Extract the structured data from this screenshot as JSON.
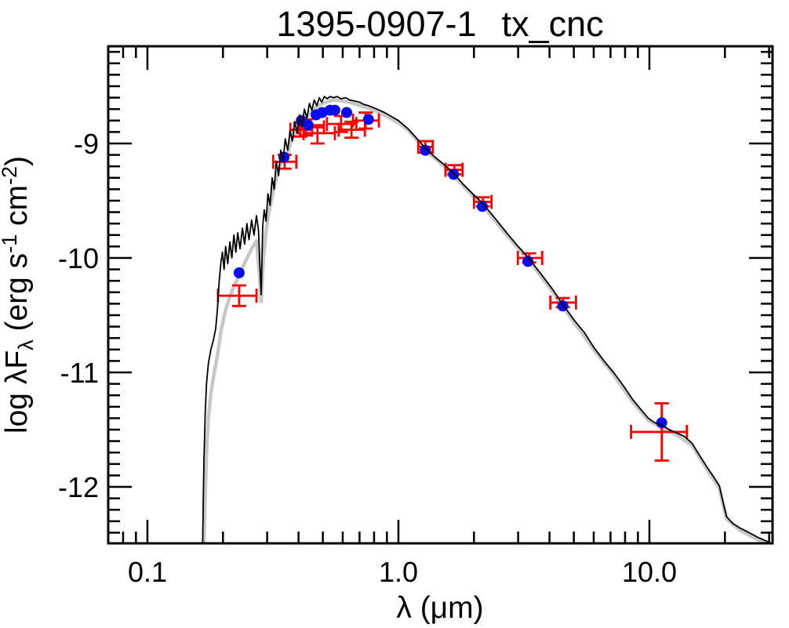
{
  "title": {
    "id": "1395-0907-1",
    "name": "tx_cnc"
  },
  "axes": {
    "xlabel": "λ (μm)",
    "ylabel_parts": [
      {
        "t": "log λF"
      },
      {
        "t": "λ",
        "s": "sub"
      },
      {
        "t": " (erg s"
      },
      {
        "t": "-1",
        "s": "sup"
      },
      {
        "t": " cm"
      },
      {
        "t": "-2",
        "s": "sup"
      },
      {
        "t": ")"
      }
    ],
    "x_scale": "log",
    "y_scale": "linear",
    "xlim": [
      0.0698,
      30.95
    ],
    "ylim": [
      -12.493,
      -8.151
    ],
    "x_major": [
      {
        "value": 0.1,
        "label": "0.1"
      },
      {
        "value": 1.0,
        "label": "1.0"
      },
      {
        "value": 10.0,
        "label": "10.0"
      }
    ],
    "x_minor": [
      0.08,
      0.09,
      0.2,
      0.3,
      0.4,
      0.5,
      0.6,
      0.7,
      0.8,
      0.9,
      2,
      3,
      4,
      5,
      6,
      7,
      8,
      9,
      20,
      30
    ],
    "y_major": [
      {
        "value": -9,
        "label": "-9"
      },
      {
        "value": -10,
        "label": "-10"
      },
      {
        "value": -11,
        "label": "-11"
      },
      {
        "value": -12,
        "label": "-12"
      }
    ],
    "y_minor_step": 0.1
  },
  "colors": {
    "background": "#ffffff",
    "axis": "#000000",
    "model_black": "#000000",
    "model_gray": "#c7c7c7",
    "point_blue": "#0b0bee",
    "error_red": "#ff0000"
  },
  "chart_data": {
    "type": "line+scatter",
    "x_unit": "micron",
    "y_unit": "log(lambda*F_lambda) [erg s^-1 cm^-2]",
    "series": [
      {
        "name": "model-spectrum-smoothed",
        "color": "#c7c7c7",
        "width": 4.5,
        "points": [
          [
            0.168,
            -12.49
          ],
          [
            0.17,
            -12.05
          ],
          [
            0.172,
            -11.7
          ],
          [
            0.175,
            -11.4
          ],
          [
            0.179,
            -11.18
          ],
          [
            0.184,
            -11.02
          ],
          [
            0.19,
            -10.85
          ],
          [
            0.197,
            -10.62
          ],
          [
            0.205,
            -10.45
          ],
          [
            0.213,
            -10.34
          ],
          [
            0.222,
            -10.24
          ],
          [
            0.232,
            -10.16
          ],
          [
            0.242,
            -10.06
          ],
          [
            0.252,
            -9.98
          ],
          [
            0.263,
            -9.9
          ],
          [
            0.272,
            -9.85
          ],
          [
            0.279,
            -10.12
          ],
          [
            0.284,
            -10.38
          ],
          [
            0.29,
            -10.0
          ],
          [
            0.297,
            -9.76
          ],
          [
            0.305,
            -9.6
          ],
          [
            0.314,
            -9.46
          ],
          [
            0.324,
            -9.33
          ],
          [
            0.335,
            -9.22
          ],
          [
            0.347,
            -9.12
          ],
          [
            0.36,
            -9.12
          ],
          [
            0.373,
            -8.98
          ],
          [
            0.386,
            -8.92
          ],
          [
            0.4,
            -8.86
          ],
          [
            0.42,
            -8.8
          ],
          [
            0.44,
            -8.74
          ],
          [
            0.46,
            -8.7
          ],
          [
            0.48,
            -8.67
          ],
          [
            0.5,
            -8.65
          ],
          [
            0.53,
            -8.63
          ],
          [
            0.56,
            -8.62
          ],
          [
            0.6,
            -8.63
          ],
          [
            0.64,
            -8.64
          ],
          [
            0.68,
            -8.66
          ],
          [
            0.73,
            -8.68
          ],
          [
            0.78,
            -8.7
          ],
          [
            0.84,
            -8.73
          ],
          [
            0.91,
            -8.77
          ],
          [
            1.0,
            -8.82
          ],
          [
            1.1,
            -8.89
          ],
          [
            1.28,
            -9.06
          ],
          [
            1.45,
            -9.16
          ],
          [
            1.66,
            -9.28
          ],
          [
            2.0,
            -9.47
          ],
          [
            2.16,
            -9.54
          ],
          [
            2.7,
            -9.8
          ],
          [
            3.3,
            -10.02
          ],
          [
            4.1,
            -10.29
          ],
          [
            5.0,
            -10.56
          ],
          [
            6.0,
            -10.8
          ],
          [
            7.2,
            -11.02
          ],
          [
            8.6,
            -11.26
          ],
          [
            9.9,
            -11.42
          ],
          [
            11.2,
            -11.48
          ],
          [
            12.9,
            -11.55
          ],
          [
            14.8,
            -11.64
          ],
          [
            17.0,
            -11.85
          ],
          [
            19.0,
            -12.01
          ],
          [
            19.6,
            -12.14
          ],
          [
            20.3,
            -12.28
          ],
          [
            23.0,
            -12.38
          ],
          [
            27.0,
            -12.46
          ],
          [
            31.0,
            -12.52
          ]
        ]
      },
      {
        "name": "model-spectrum",
        "color": "#000000",
        "width": 1.8,
        "points": [
          [
            0.166,
            -12.49
          ],
          [
            0.167,
            -12.1
          ],
          [
            0.168,
            -11.75
          ],
          [
            0.17,
            -11.35
          ],
          [
            0.172,
            -11.1
          ],
          [
            0.175,
            -10.92
          ],
          [
            0.179,
            -10.8
          ],
          [
            0.183,
            -10.72
          ],
          [
            0.187,
            -10.62
          ],
          [
            0.19,
            -10.45
          ],
          [
            0.193,
            -10.22
          ],
          [
            0.196,
            -10.05
          ],
          [
            0.199,
            -9.95
          ],
          [
            0.202,
            -10.1
          ],
          [
            0.205,
            -9.9
          ],
          [
            0.209,
            -10.05
          ],
          [
            0.213,
            -9.86
          ],
          [
            0.217,
            -10.0
          ],
          [
            0.221,
            -9.8
          ],
          [
            0.225,
            -9.95
          ],
          [
            0.229,
            -9.78
          ],
          [
            0.234,
            -9.92
          ],
          [
            0.239,
            -9.74
          ],
          [
            0.244,
            -9.88
          ],
          [
            0.249,
            -9.7
          ],
          [
            0.254,
            -9.84
          ],
          [
            0.26,
            -9.67
          ],
          [
            0.266,
            -9.8
          ],
          [
            0.272,
            -9.63
          ],
          [
            0.277,
            -9.76
          ],
          [
            0.281,
            -10.1
          ],
          [
            0.284,
            -10.32
          ],
          [
            0.288,
            -9.72
          ],
          [
            0.292,
            -9.58
          ],
          [
            0.297,
            -9.68
          ],
          [
            0.302,
            -9.44
          ],
          [
            0.308,
            -9.54
          ],
          [
            0.314,
            -9.3
          ],
          [
            0.32,
            -9.4
          ],
          [
            0.326,
            -9.16
          ],
          [
            0.333,
            -9.28
          ],
          [
            0.34,
            -9.06
          ],
          [
            0.347,
            -9.16
          ],
          [
            0.354,
            -8.96
          ],
          [
            0.362,
            -9.06
          ],
          [
            0.37,
            -8.89
          ],
          [
            0.378,
            -8.98
          ],
          [
            0.386,
            -8.81
          ],
          [
            0.395,
            -8.91
          ],
          [
            0.404,
            -8.75
          ],
          [
            0.413,
            -8.85
          ],
          [
            0.422,
            -8.7
          ],
          [
            0.432,
            -8.78
          ],
          [
            0.442,
            -8.65
          ],
          [
            0.452,
            -8.71
          ],
          [
            0.462,
            -8.62
          ],
          [
            0.473,
            -8.67
          ],
          [
            0.484,
            -8.6
          ],
          [
            0.495,
            -8.64
          ],
          [
            0.507,
            -8.59
          ],
          [
            0.52,
            -8.61
          ],
          [
            0.534,
            -8.59
          ],
          [
            0.55,
            -8.6
          ],
          [
            0.57,
            -8.59
          ],
          [
            0.59,
            -8.61
          ],
          [
            0.615,
            -8.6
          ],
          [
            0.64,
            -8.62
          ],
          [
            0.67,
            -8.63
          ],
          [
            0.7,
            -8.64
          ],
          [
            0.73,
            -8.66
          ],
          [
            0.76,
            -8.67
          ],
          [
            0.8,
            -8.69
          ],
          [
            0.84,
            -8.71
          ],
          [
            0.88,
            -8.73
          ],
          [
            0.93,
            -8.76
          ],
          [
            1.0,
            -8.8
          ],
          [
            1.09,
            -8.87
          ],
          [
            1.2,
            -8.97
          ],
          [
            1.28,
            -9.04
          ],
          [
            1.4,
            -9.12
          ],
          [
            1.55,
            -9.2
          ],
          [
            1.66,
            -9.26
          ],
          [
            1.8,
            -9.35
          ],
          [
            2.0,
            -9.45
          ],
          [
            2.16,
            -9.52
          ],
          [
            2.4,
            -9.64
          ],
          [
            2.7,
            -9.78
          ],
          [
            3.0,
            -9.9
          ],
          [
            3.3,
            -10.0
          ],
          [
            3.7,
            -10.14
          ],
          [
            4.1,
            -10.27
          ],
          [
            4.5,
            -10.4
          ],
          [
            5.0,
            -10.54
          ],
          [
            5.5,
            -10.65
          ],
          [
            6.0,
            -10.78
          ],
          [
            6.6,
            -10.9
          ],
          [
            7.2,
            -11.0
          ],
          [
            7.9,
            -11.12
          ],
          [
            8.6,
            -11.24
          ],
          [
            9.3,
            -11.33
          ],
          [
            9.9,
            -11.4
          ],
          [
            10.5,
            -11.44
          ],
          [
            11.2,
            -11.46
          ],
          [
            12.0,
            -11.5
          ],
          [
            12.9,
            -11.53
          ],
          [
            13.8,
            -11.56
          ],
          [
            14.8,
            -11.62
          ],
          [
            15.9,
            -11.73
          ],
          [
            17.0,
            -11.83
          ],
          [
            18.0,
            -11.91
          ],
          [
            19.0,
            -11.99
          ],
          [
            19.6,
            -12.12
          ],
          [
            20.3,
            -12.26
          ],
          [
            21.5,
            -12.32
          ],
          [
            23.0,
            -12.36
          ],
          [
            25.0,
            -12.4
          ],
          [
            27.0,
            -12.44
          ],
          [
            29.0,
            -12.47
          ],
          [
            31.0,
            -12.5
          ]
        ]
      }
    ],
    "photometry": {
      "name": "observed-photometry",
      "color": "#0b0bee",
      "radius": 7,
      "points": [
        [
          0.232,
          -10.13
        ],
        [
          0.35,
          -9.12
        ],
        [
          0.41,
          -8.8
        ],
        [
          0.437,
          -8.84
        ],
        [
          0.47,
          -8.75
        ],
        [
          0.497,
          -8.73
        ],
        [
          0.534,
          -8.71
        ],
        [
          0.558,
          -8.71
        ],
        [
          0.622,
          -8.73
        ],
        [
          0.76,
          -8.79
        ],
        [
          1.28,
          -9.06
        ],
        [
          1.66,
          -9.27
        ],
        [
          2.16,
          -9.55
        ],
        [
          3.28,
          -10.03
        ],
        [
          4.52,
          -10.42
        ],
        [
          11.2,
          -11.44
        ]
      ]
    },
    "errorbars": {
      "name": "photometry-errorbars",
      "color": "#ff0000",
      "width": 2.8,
      "cap": 9,
      "bars": [
        {
          "x": 0.232,
          "y": -10.33,
          "xlo": 0.191,
          "xhi": 0.272,
          "ylo": -10.42,
          "yhi": -10.24
        },
        {
          "x": 0.352,
          "y": -9.16,
          "xlo": 0.317,
          "xhi": 0.392,
          "ylo": -9.22,
          "yhi": -9.1
        },
        {
          "x": 0.407,
          "y": -8.88,
          "xlo": 0.371,
          "xhi": 0.453,
          "ylo": -8.94,
          "yhi": -8.82
        },
        {
          "x": 0.428,
          "y": -8.86,
          "xlo": 0.398,
          "xhi": 0.505,
          "ylo": -8.93,
          "yhi": -8.79
        },
        {
          "x": 0.476,
          "y": -8.91,
          "xlo": 0.419,
          "xhi": 0.558,
          "ylo": -9.0,
          "yhi": -8.84
        },
        {
          "x": 0.591,
          "y": -8.83,
          "xlo": 0.519,
          "xhi": 0.68,
          "ylo": -8.9,
          "yhi": -8.76
        },
        {
          "x": 0.65,
          "y": -8.88,
          "xlo": 0.578,
          "xhi": 0.735,
          "ylo": -8.95,
          "yhi": -8.81
        },
        {
          "x": 0.74,
          "y": -8.8,
          "xlo": 0.659,
          "xhi": 0.836,
          "ylo": -8.87,
          "yhi": -8.73
        },
        {
          "x": 1.28,
          "y": -9.03,
          "xlo": 1.2,
          "xhi": 1.37,
          "ylo": -9.08,
          "yhi": -8.98
        },
        {
          "x": 1.67,
          "y": -9.23,
          "xlo": 1.54,
          "xhi": 1.8,
          "ylo": -9.27,
          "yhi": -9.19
        },
        {
          "x": 2.17,
          "y": -9.51,
          "xlo": 2.0,
          "xhi": 2.35,
          "ylo": -9.55,
          "yhi": -9.47
        },
        {
          "x": 3.32,
          "y": -10.0,
          "xlo": 2.99,
          "xhi": 3.74,
          "ylo": -10.04,
          "yhi": -9.96
        },
        {
          "x": 4.52,
          "y": -10.39,
          "xlo": 4.03,
          "xhi": 5.1,
          "ylo": -10.43,
          "yhi": -10.35
        },
        {
          "x": 11.2,
          "y": -11.52,
          "xlo": 8.45,
          "xhi": 14.1,
          "ylo": -11.77,
          "yhi": -11.27
        }
      ]
    }
  }
}
